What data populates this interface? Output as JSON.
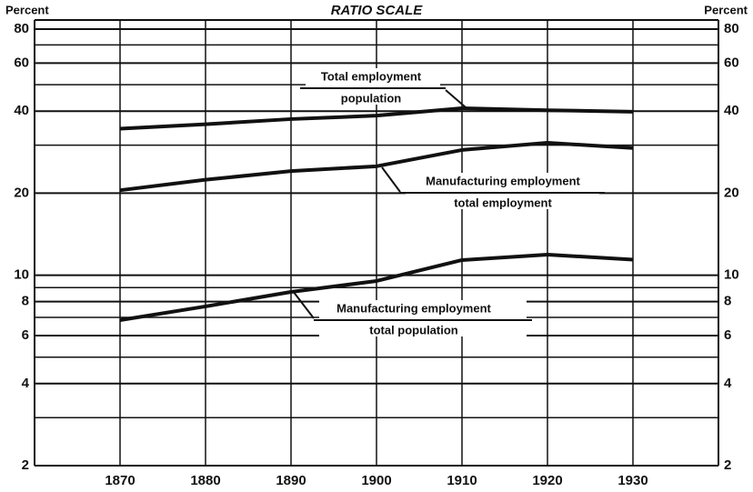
{
  "chart_data": {
    "type": "line",
    "title": "RATIO SCALE",
    "y_label": "Percent",
    "log_scale": true,
    "grid": true,
    "x": [
      1870,
      1880,
      1890,
      1900,
      1910,
      1920,
      1930
    ],
    "xlim": [
      1860,
      1940
    ],
    "xticks": [
      1870,
      1880,
      1890,
      1900,
      1910,
      1920,
      1930
    ],
    "ylim": [
      2,
      80
    ],
    "yticks": [
      2,
      4,
      6,
      8,
      10,
      20,
      40,
      60,
      80
    ],
    "minor_yticks": [
      3,
      5,
      7,
      9,
      30,
      50,
      70
    ],
    "series": [
      {
        "numerator": "Total employment",
        "denominator": "population",
        "color": "#111111",
        "values": [
          34.5,
          35.8,
          37.4,
          38.5,
          41,
          40.3,
          39.8
        ]
      },
      {
        "numerator": "Manufacturing employment",
        "denominator": "total employment",
        "color": "#111111",
        "values": [
          20.5,
          22.4,
          24.1,
          25.1,
          28.8,
          30.6,
          29.3
        ]
      },
      {
        "numerator": "Manufacturing employment",
        "denominator": "total population",
        "color": "#111111",
        "values": [
          6.84,
          7.68,
          8.68,
          9.52,
          11.36,
          11.9,
          11.4
        ]
      }
    ]
  }
}
